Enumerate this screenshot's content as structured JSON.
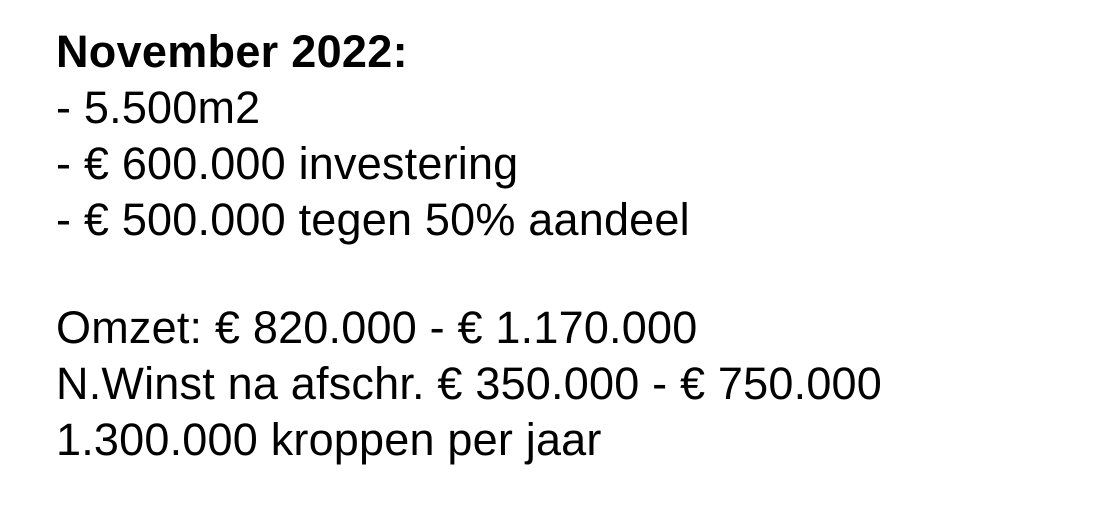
{
  "heading": "November 2022:",
  "bullets": [
    "- 5.500m2",
    "- € 600.000 investering",
    "- € 500.000 tegen 50% aandeel"
  ],
  "summary": [
    "Omzet: € 820.000 - € 1.170.000",
    "N.Winst na afschr. € 350.000 - € 750.000",
    "1.300.000 kroppen per jaar"
  ]
}
